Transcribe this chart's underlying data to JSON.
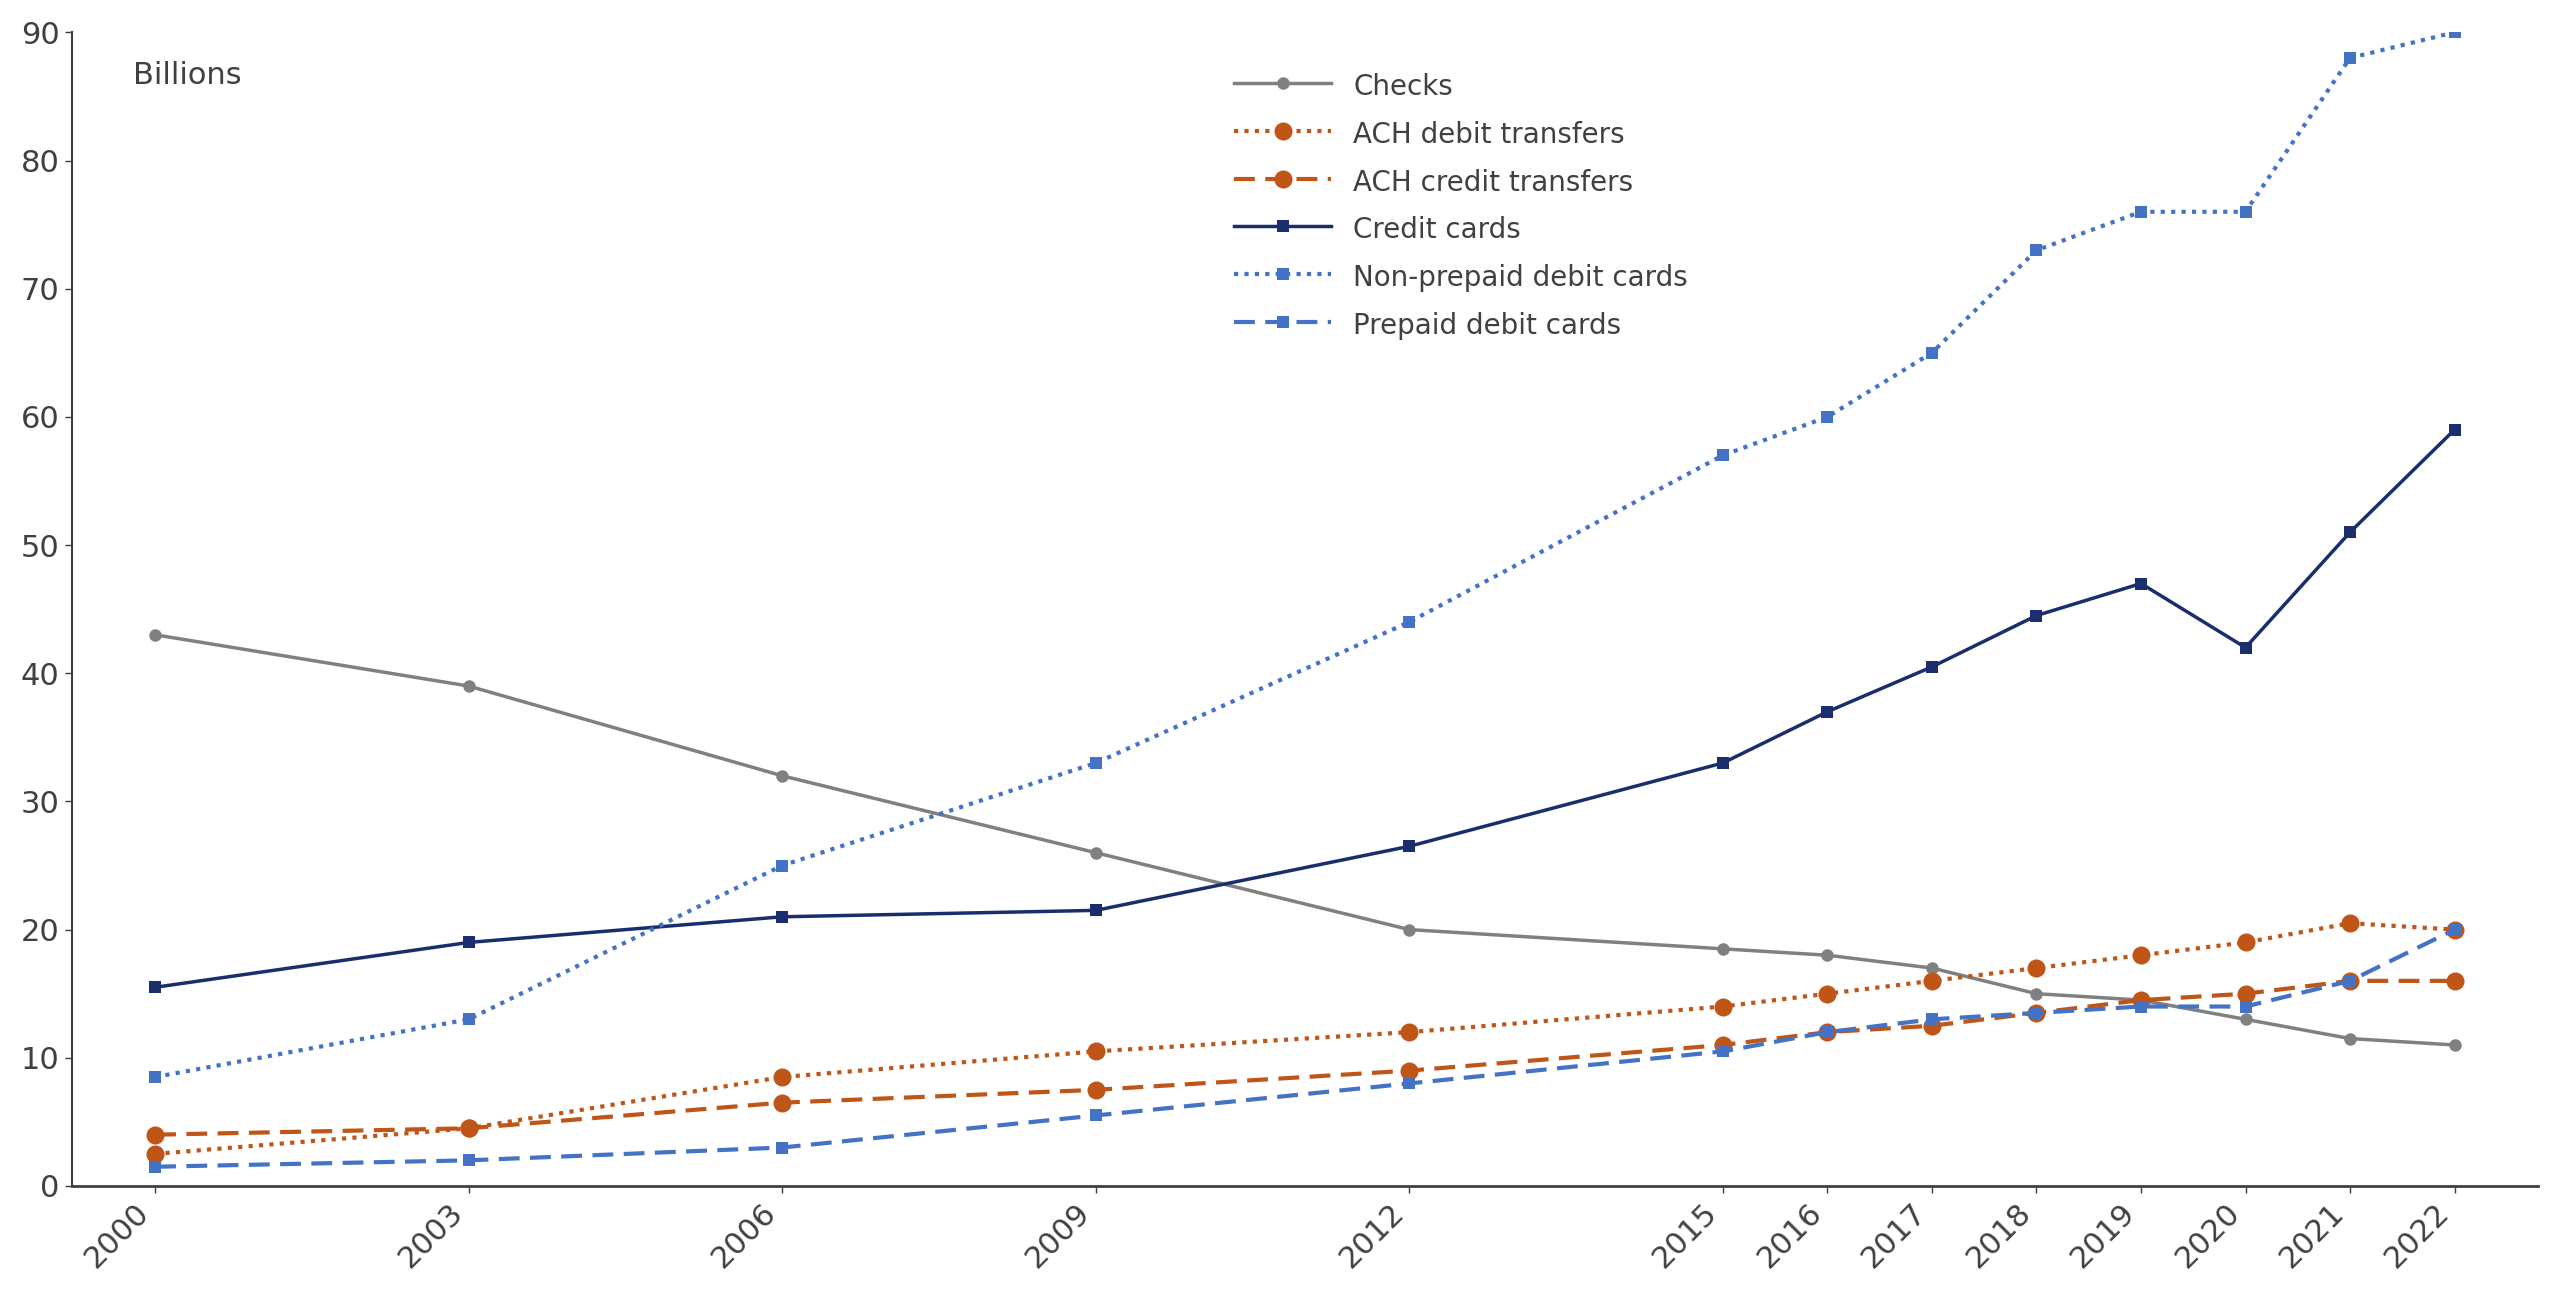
{
  "ylabel": "Billions",
  "background_color": "#ffffff",
  "series": {
    "Checks": {
      "x": [
        2000,
        2003,
        2006,
        2009,
        2012,
        2015,
        2016,
        2017,
        2018,
        2019,
        2020,
        2021,
        2022
      ],
      "y": [
        43,
        39,
        32,
        26,
        20,
        18.5,
        18,
        17,
        15,
        14.5,
        13,
        11.5,
        11
      ],
      "color": "#808080",
      "linestyle": "solid",
      "marker": "o",
      "linewidth": 2.5,
      "markersize": 9,
      "label": "Checks"
    },
    "ACH_debit": {
      "x": [
        2000,
        2003,
        2006,
        2009,
        2012,
        2015,
        2016,
        2017,
        2018,
        2019,
        2020,
        2021,
        2022
      ],
      "y": [
        2.5,
        4.5,
        8.5,
        10.5,
        12,
        14,
        15,
        16,
        17,
        18,
        19,
        20.5,
        20
      ],
      "color": "#bf5517",
      "linestyle": "dotted",
      "marker": "o",
      "linewidth": 3.0,
      "markersize": 13,
      "label": "ACH debit transfers"
    },
    "ACH_credit": {
      "x": [
        2000,
        2003,
        2006,
        2009,
        2012,
        2015,
        2016,
        2017,
        2018,
        2019,
        2020,
        2021,
        2022
      ],
      "y": [
        4,
        4.5,
        6.5,
        7.5,
        9,
        11,
        12,
        12.5,
        13.5,
        14.5,
        15,
        16,
        16
      ],
      "color": "#bf5517",
      "linestyle": "dashed",
      "marker": "o",
      "linewidth": 3.0,
      "markersize": 13,
      "label": "ACH credit transfers"
    },
    "Credit_cards": {
      "x": [
        2000,
        2003,
        2006,
        2009,
        2012,
        2015,
        2016,
        2017,
        2018,
        2019,
        2020,
        2021,
        2022
      ],
      "y": [
        15.5,
        19,
        21,
        21.5,
        26.5,
        33,
        37,
        40.5,
        44.5,
        47,
        42,
        51,
        59
      ],
      "color": "#1a2e6e",
      "linestyle": "solid",
      "marker": "s",
      "linewidth": 2.5,
      "markersize": 9,
      "label": "Credit cards"
    },
    "Non_prepaid_debit": {
      "x": [
        2000,
        2003,
        2006,
        2009,
        2012,
        2015,
        2016,
        2017,
        2018,
        2019,
        2020,
        2021,
        2022
      ],
      "y": [
        8.5,
        13,
        25,
        33,
        44,
        57,
        60,
        65,
        73,
        76,
        76,
        88,
        90
      ],
      "color": "#4472c4",
      "linestyle": "dotted",
      "marker": "s",
      "linewidth": 3.0,
      "markersize": 9,
      "label": "Non-prepaid debit cards"
    },
    "Prepaid_debit": {
      "x": [
        2000,
        2003,
        2006,
        2009,
        2012,
        2015,
        2016,
        2017,
        2018,
        2019,
        2020,
        2021,
        2022
      ],
      "y": [
        1.5,
        2,
        3,
        5.5,
        8,
        10.5,
        12,
        13,
        13.5,
        14,
        14,
        16,
        20
      ],
      "color": "#4472c4",
      "linestyle": "dashed",
      "marker": "s",
      "linewidth": 3.0,
      "markersize": 9,
      "label": "Prepaid debit cards"
    }
  },
  "xlim": [
    1999.2,
    2022.8
  ],
  "ylim": [
    0,
    90
  ],
  "yticks": [
    0,
    10,
    20,
    30,
    40,
    50,
    60,
    70,
    80,
    90
  ],
  "xticks": [
    2000,
    2003,
    2006,
    2009,
    2012,
    2015,
    2016,
    2017,
    2018,
    2019,
    2020,
    2021,
    2022
  ],
  "figsize": [
    25.59,
    12.94
  ],
  "dpi": 100,
  "tick_fontsize": 22,
  "label_fontsize": 22,
  "legend_fontsize": 20
}
